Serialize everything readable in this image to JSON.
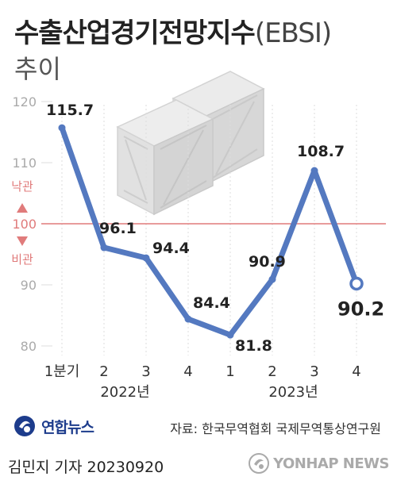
{
  "title": "수출산업경기전망지수",
  "title_paren": "(EBSI)",
  "subtitle": "추이",
  "good_label": "낙관",
  "bad_label": "비관",
  "byline": "김민지 기자  20230920",
  "source": "자료: 한국무역협회 국제무역통상연구원",
  "logo_text": "연합뉴스",
  "watermark_text": "YONHAP NEWS",
  "colors": {
    "line": "#5479c0",
    "reference": "#e07b7b",
    "grid": "#dddddd",
    "point_label": "#222222",
    "axis_label": "#aaaaaa"
  },
  "icons": {
    "illustration": "crate-icon",
    "logo": "yonhap-logo-icon"
  },
  "chart_data": {
    "type": "line",
    "x": [
      "1분기",
      "2",
      "3",
      "4",
      "1",
      "2",
      "3",
      "4"
    ],
    "year_groups": [
      {
        "label": "2022년",
        "from": 0,
        "to": 3
      },
      {
        "label": "2023년",
        "from": 4,
        "to": 7
      }
    ],
    "values": [
      115.7,
      96.1,
      94.4,
      84.4,
      81.8,
      90.9,
      108.7,
      90.2
    ],
    "value_labels": [
      "115.7",
      "96.1",
      "94.4",
      "84.4",
      "81.8",
      "90.9",
      "108.7",
      "90.2"
    ],
    "yticks": [
      80,
      90,
      100,
      110,
      120
    ],
    "ylim": [
      80,
      120
    ],
    "reference_line": 100,
    "highlight_last": true
  }
}
